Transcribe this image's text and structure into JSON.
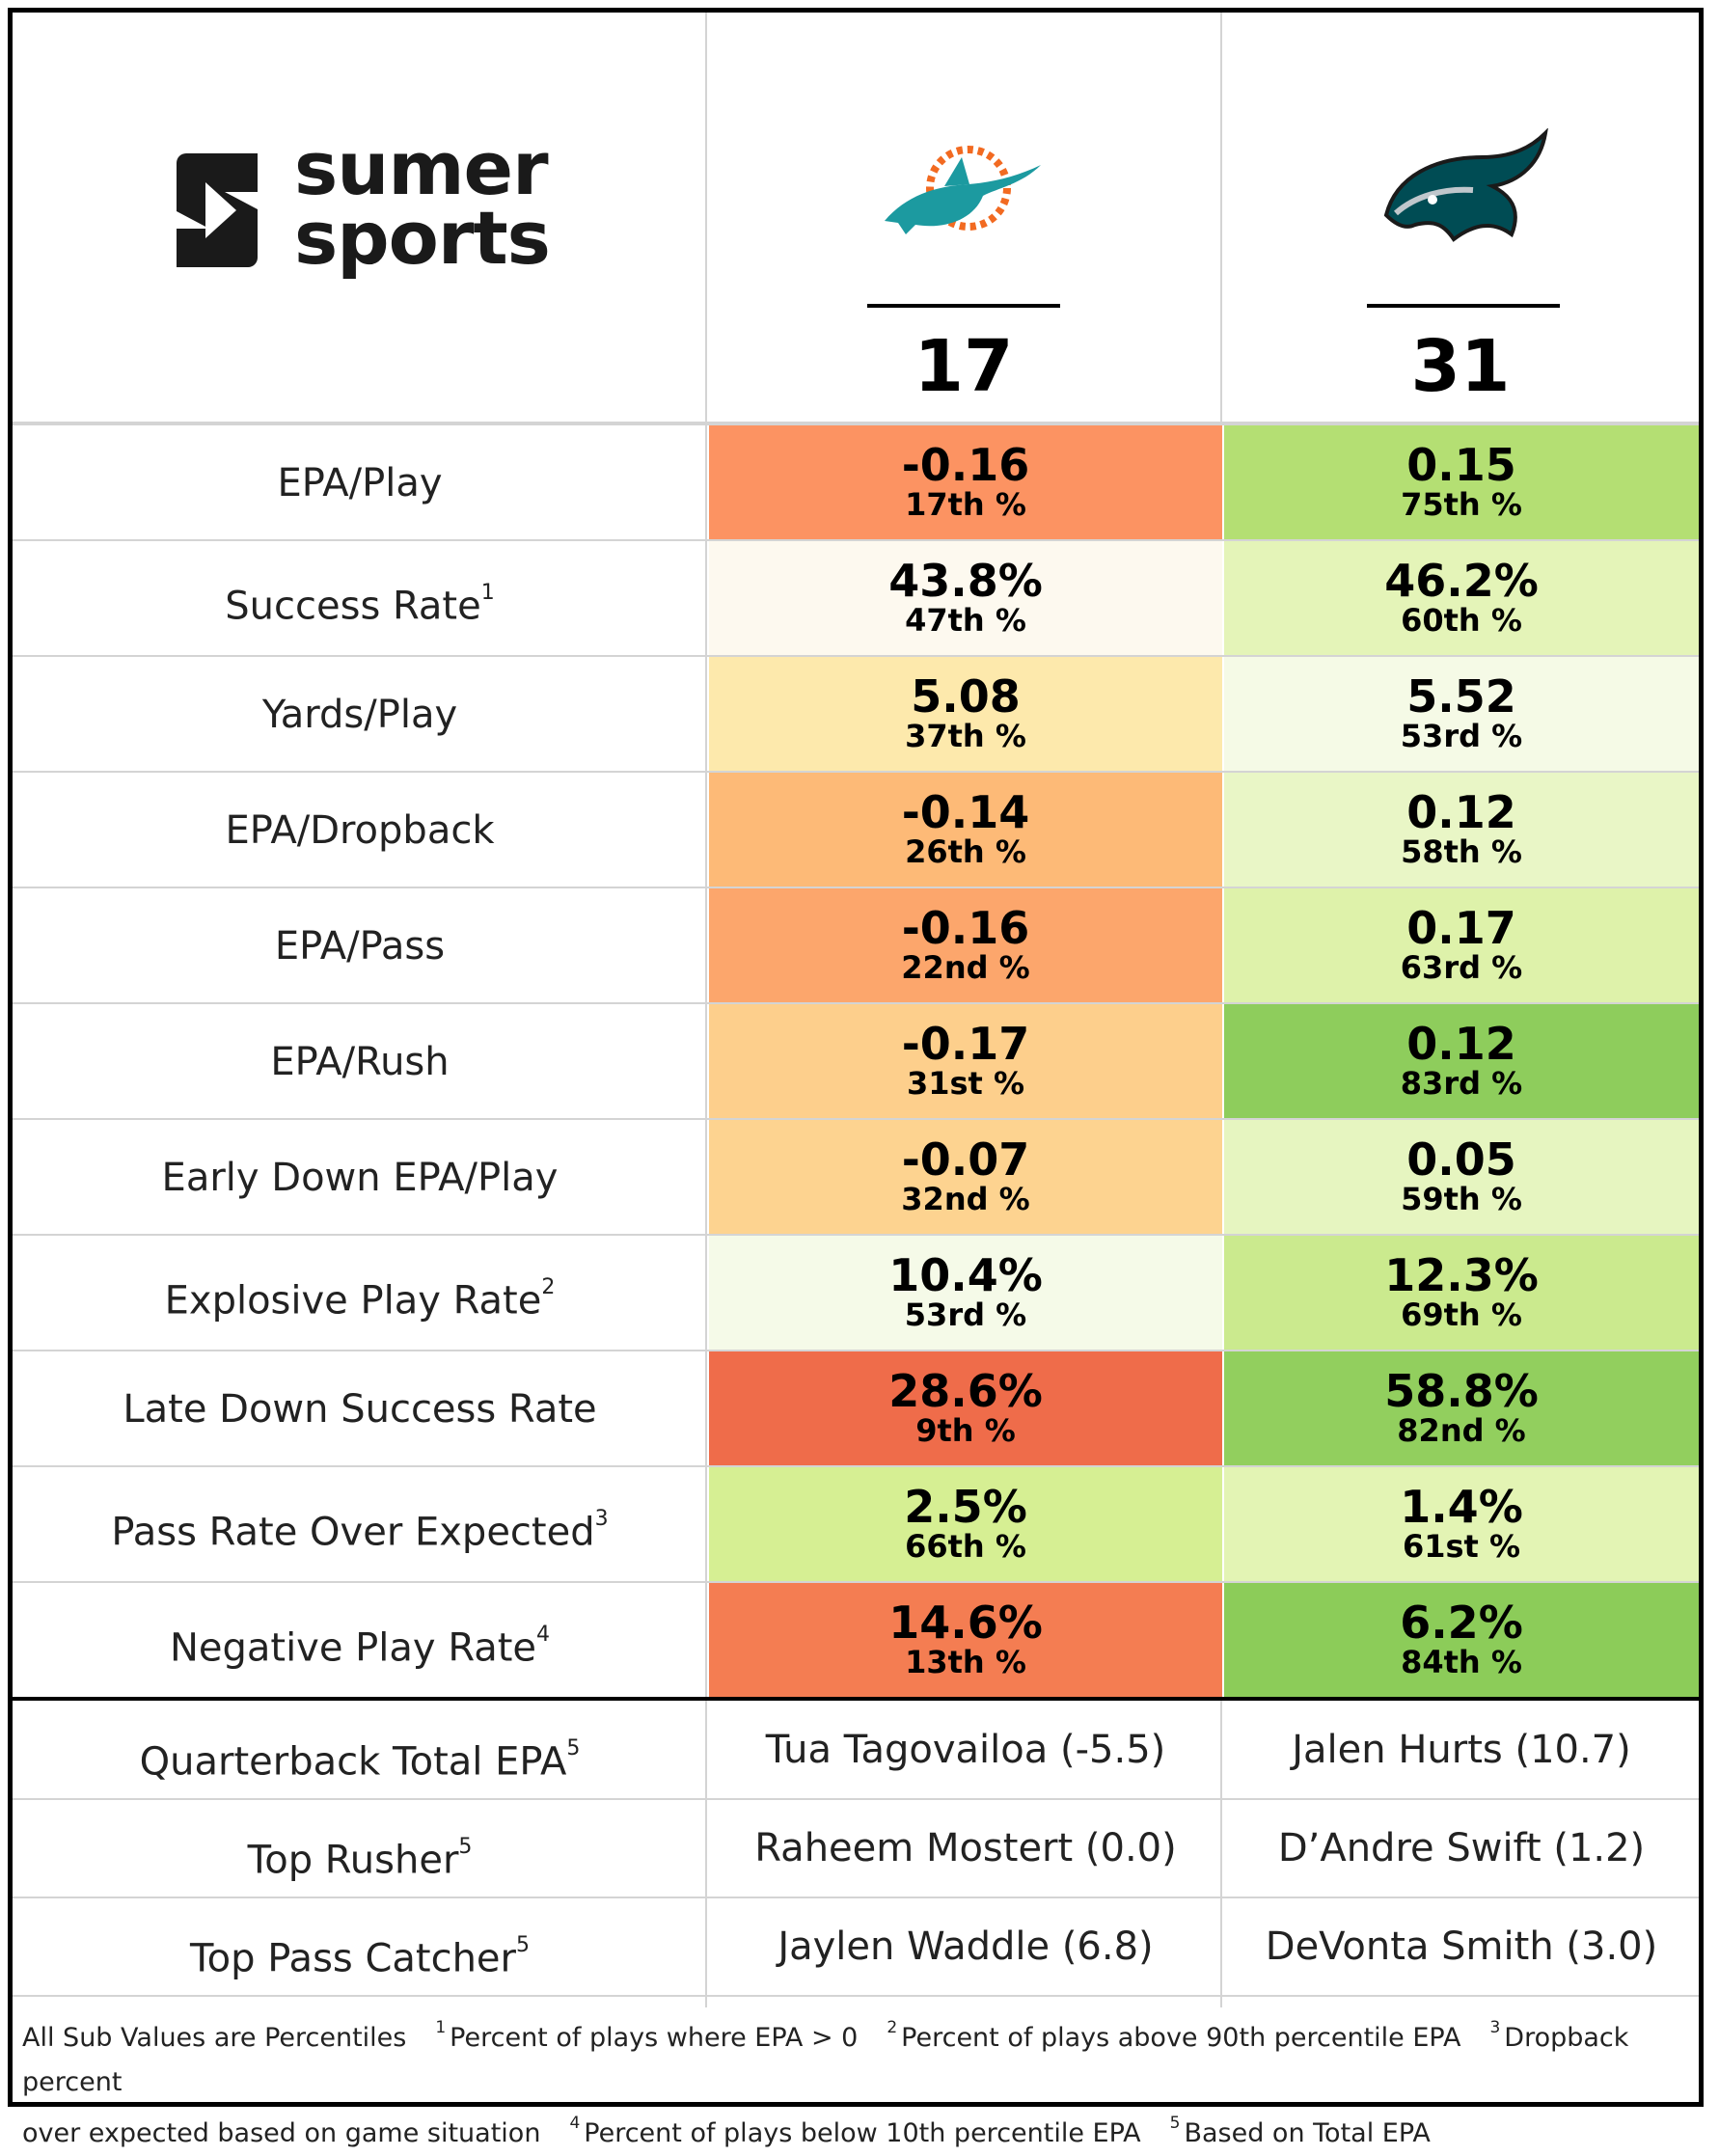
{
  "brand": {
    "line1": "sumer",
    "line2": "sports"
  },
  "teams": [
    {
      "name_icon": "dolphins-logo-icon",
      "score": "17"
    },
    {
      "name_icon": "eagles-logo-icon",
      "score": "31"
    }
  ],
  "metrics": [
    {
      "label": "EPA/Play",
      "sup": "",
      "a": {
        "value": "-0.16",
        "pct": "17th %",
        "color": "#fc9362"
      },
      "b": {
        "value": "0.15",
        "pct": "75th %",
        "color": "#b4df73"
      }
    },
    {
      "label": "Success Rate",
      "sup": "1",
      "a": {
        "value": "43.8%",
        "pct": "47th %",
        "color": "#fdf9ef"
      },
      "b": {
        "value": "46.2%",
        "pct": "60th %",
        "color": "#e4f4b8"
      }
    },
    {
      "label": "Yards/Play",
      "sup": "",
      "a": {
        "value": "5.08",
        "pct": "37th %",
        "color": "#fde9ac"
      },
      "b": {
        "value": "5.52",
        "pct": "53rd %",
        "color": "#f5fae6"
      }
    },
    {
      "label": "EPA/Dropback",
      "sup": "",
      "a": {
        "value": "-0.14",
        "pct": "26th %",
        "color": "#fdba77"
      },
      "b": {
        "value": "0.12",
        "pct": "58th %",
        "color": "#e9f6c6"
      }
    },
    {
      "label": "EPA/Pass",
      "sup": "",
      "a": {
        "value": "-0.16",
        "pct": "22nd %",
        "color": "#fca66c"
      },
      "b": {
        "value": "0.17",
        "pct": "63rd %",
        "color": "#def2aa"
      }
    },
    {
      "label": "EPA/Rush",
      "sup": "",
      "a": {
        "value": "-0.17",
        "pct": "31st %",
        "color": "#fdcf8c"
      },
      "b": {
        "value": "0.12",
        "pct": "83rd %",
        "color": "#8ecd5c"
      }
    },
    {
      "label": "Early Down EPA/Play",
      "sup": "",
      "a": {
        "value": "-0.07",
        "pct": "32nd %",
        "color": "#fdd390"
      },
      "b": {
        "value": "0.05",
        "pct": "59th %",
        "color": "#e6f5c0"
      }
    },
    {
      "label": "Explosive Play Rate",
      "sup": "2",
      "a": {
        "value": "10.4%",
        "pct": "53rd %",
        "color": "#f5fae8"
      },
      "b": {
        "value": "12.3%",
        "pct": "69th %",
        "color": "#cbea8e"
      }
    },
    {
      "label": "Late Down Success Rate",
      "sup": "",
      "a": {
        "value": "28.6%",
        "pct": "9th %",
        "color": "#ef6c4a"
      },
      "b": {
        "value": "58.8%",
        "pct": "82nd %",
        "color": "#92cf5e"
      }
    },
    {
      "label": "Pass Rate Over Expected",
      "sup": "3",
      "a": {
        "value": "2.5%",
        "pct": "66th %",
        "color": "#d6ef93"
      },
      "b": {
        "value": "1.4%",
        "pct": "61st %",
        "color": "#e3f4b4"
      }
    },
    {
      "label": "Negative Play Rate",
      "sup": "4",
      "a": {
        "value": "14.6%",
        "pct": "13th %",
        "color": "#f47d52"
      },
      "b": {
        "value": "6.2%",
        "pct": "84th %",
        "color": "#8ccc59"
      }
    }
  ],
  "players": [
    {
      "label": "Quarterback Total EPA",
      "sup": "5",
      "a": "Tua Tagovailoa (-5.5)",
      "b": "Jalen Hurts (10.7)"
    },
    {
      "label": "Top Rusher",
      "sup": "5",
      "a": "Raheem Mostert (0.0)",
      "b": "D’Andre Swift (1.2)"
    },
    {
      "label": "Top Pass Catcher",
      "sup": "5",
      "a": "Jaylen Waddle (6.8)",
      "b": "DeVonta Smith (3.0)"
    }
  ],
  "footnotes": {
    "intro": "All Sub Values are Percentiles",
    "n1": "1",
    "t1": "Percent of plays where EPA > 0",
    "n2": "2",
    "t2": "Percent of plays above 90th percentile EPA",
    "n3": "3",
    "t3a": "Dropback percent",
    "t3b": "over expected based on game situation",
    "n4": "4",
    "t4": "Percent of plays below 10th percentile EPA",
    "n5": "5",
    "t5": "Based on Total EPA"
  }
}
